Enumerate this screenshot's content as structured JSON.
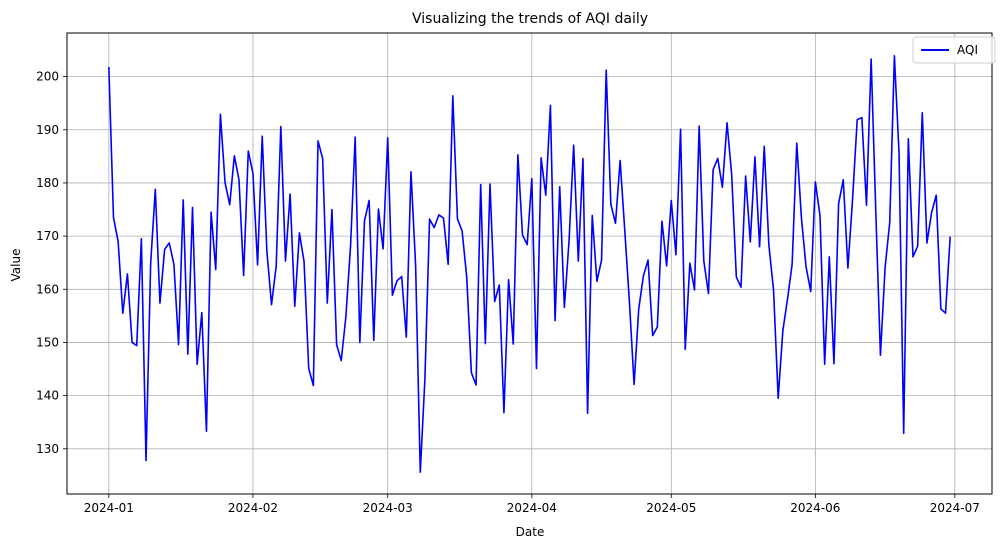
{
  "chart_data": {
    "type": "line",
    "title": "Visualizing the trends of AQI daily",
    "xlabel": "Date",
    "ylabel": "Value",
    "x_ticks": [
      "2024-01",
      "2024-02",
      "2024-03",
      "2024-04",
      "2024-05",
      "2024-06",
      "2024-07"
    ],
    "y_ticks": [
      130,
      140,
      150,
      160,
      170,
      180,
      190,
      200
    ],
    "ylim": [
      121.5,
      208.2
    ],
    "xlim": [
      "2023-12-23",
      "2024-07-09"
    ],
    "grid": true,
    "legend_position": "top-right",
    "series": [
      {
        "name": "AQI",
        "color": "#0000ff",
        "start_date": "2024-01-01",
        "end_date": "2024-06-30",
        "values": [
          201.8,
          173.5,
          169.0,
          155.5,
          162.9,
          150.0,
          149.4,
          169.5,
          127.8,
          164.9,
          178.8,
          157.4,
          167.5,
          168.7,
          164.7,
          149.6,
          176.8,
          147.8,
          175.4,
          145.9,
          155.6,
          133.3,
          174.5,
          163.7,
          192.9,
          180.1,
          175.9,
          185.1,
          180.6,
          162.6,
          186.0,
          181.8,
          164.6,
          188.8,
          167.2,
          157.1,
          164.3,
          190.6,
          165.3,
          177.9,
          156.8,
          170.6,
          165.2,
          145.1,
          141.9,
          187.9,
          184.6,
          157.4,
          175.0,
          149.6,
          146.6,
          154.9,
          168.1,
          188.6,
          150.0,
          172.9,
          176.7,
          150.4,
          175.1,
          167.6,
          188.5,
          158.9,
          161.6,
          162.4,
          151.0,
          182.1,
          164.5,
          125.6,
          143.1,
          173.2,
          171.6,
          174.0,
          173.4,
          164.7,
          196.4,
          173.2,
          171.0,
          162.2,
          144.3,
          142.0,
          179.7,
          149.8,
          179.8,
          157.7,
          160.8,
          136.8,
          161.8,
          149.7,
          185.3,
          170.2,
          168.4,
          180.8,
          145.1,
          184.7,
          177.7,
          194.6,
          154.1,
          179.3,
          156.6,
          169.0,
          187.1,
          165.3,
          184.6,
          136.7,
          173.9,
          161.5,
          165.5,
          201.2,
          176.0,
          172.4,
          184.2,
          171.0,
          157.6,
          142.1,
          156.3,
          162.5,
          165.5,
          151.3,
          152.9,
          172.8,
          164.4,
          176.7,
          166.5,
          190.1,
          148.7,
          164.9,
          159.9,
          190.7,
          165.3,
          159.2,
          182.5,
          184.6,
          179.2,
          191.3,
          181.5,
          162.3,
          160.4,
          181.3,
          168.9,
          184.9,
          168.0,
          186.9,
          168.3,
          159.9,
          139.5,
          152.2,
          158.1,
          164.7,
          187.5,
          173.4,
          164.2,
          159.6,
          180.2,
          173.8,
          145.9,
          166.1,
          146.0,
          176.1,
          180.6,
          164.0,
          176.9,
          191.9,
          192.3,
          175.8,
          203.3,
          174.6,
          147.6,
          164.1,
          172.6,
          203.9,
          185.6,
          132.9,
          188.3,
          166.1,
          168.1,
          193.2,
          168.7,
          174.4,
          177.7,
          156.3,
          155.5,
          169.9
        ]
      }
    ]
  }
}
